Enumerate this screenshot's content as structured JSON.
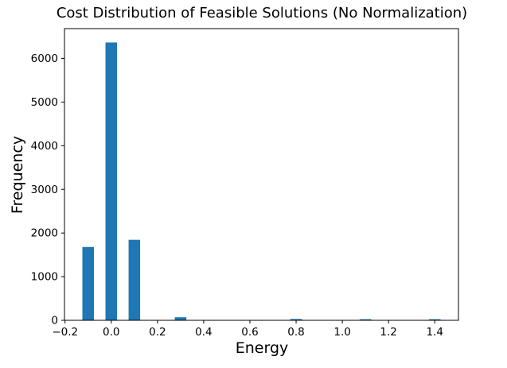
{
  "chart_data": {
    "type": "bar",
    "subtype": "histogram",
    "title": "Cost Distribution of Feasible Solutions (No Normalization)",
    "xlabel": "Energy",
    "ylabel": "Frequency",
    "bar_color": "#1f77b4",
    "axis_color": "#000000",
    "background_color": "#ffffff",
    "grid": false,
    "legend_position": "none",
    "bin_width": 0.05,
    "x": [
      -0.1,
      0.0,
      0.1,
      0.3,
      0.8,
      1.1,
      1.4
    ],
    "values": [
      1680,
      6365,
      1845,
      70,
      30,
      25,
      25
    ],
    "xlim": [
      -0.2025,
      1.5025
    ],
    "ylim": [
      0,
      6683
    ],
    "xticks": [
      -0.2,
      0.0,
      0.2,
      0.4,
      0.6,
      0.8,
      1.0,
      1.2,
      1.4
    ],
    "xtick_labels": [
      "−0.2",
      "0.0",
      "0.2",
      "0.4",
      "0.6",
      "0.8",
      "1.0",
      "1.2",
      "1.4"
    ],
    "yticks": [
      0,
      1000,
      2000,
      3000,
      4000,
      5000,
      6000
    ],
    "ytick_labels": [
      "0",
      "1000",
      "2000",
      "3000",
      "4000",
      "5000",
      "6000"
    ]
  }
}
